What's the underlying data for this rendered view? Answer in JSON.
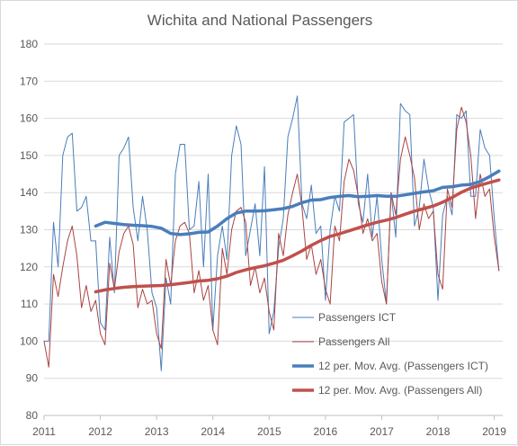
{
  "chart_data": {
    "type": "line",
    "title": "Wichita and National Passengers",
    "xlabel": "",
    "ylabel": "",
    "ylim": [
      80,
      180
    ],
    "yticks": [
      80,
      90,
      100,
      110,
      120,
      130,
      140,
      150,
      160,
      170,
      180
    ],
    "xlim": [
      2011,
      2019.15
    ],
    "xticks": [
      2011,
      2012,
      2013,
      2014,
      2015,
      2016,
      2017,
      2018,
      2019
    ],
    "grid": true,
    "legend_position": "bottom-right",
    "series": [
      {
        "name": "Passengers ICT",
        "color": "#4a7ebb",
        "width": 1,
        "x": [
          2011.0,
          2011.083,
          2011.167,
          2011.25,
          2011.333,
          2011.417,
          2011.5,
          2011.583,
          2011.667,
          2011.75,
          2011.833,
          2011.917,
          2012.0,
          2012.083,
          2012.167,
          2012.25,
          2012.333,
          2012.417,
          2012.5,
          2012.583,
          2012.667,
          2012.75,
          2012.833,
          2012.917,
          2013.0,
          2013.083,
          2013.167,
          2013.25,
          2013.333,
          2013.417,
          2013.5,
          2013.583,
          2013.667,
          2013.75,
          2013.833,
          2013.917,
          2014.0,
          2014.083,
          2014.167,
          2014.25,
          2014.333,
          2014.417,
          2014.5,
          2014.583,
          2014.667,
          2014.75,
          2014.833,
          2014.917,
          2015.0,
          2015.083,
          2015.167,
          2015.25,
          2015.333,
          2015.417,
          2015.5,
          2015.583,
          2015.667,
          2015.75,
          2015.833,
          2015.917,
          2016.0,
          2016.083,
          2016.167,
          2016.25,
          2016.333,
          2016.417,
          2016.5,
          2016.583,
          2016.667,
          2016.75,
          2016.833,
          2016.917,
          2017.0,
          2017.083,
          2017.167,
          2017.25,
          2017.333,
          2017.417,
          2017.5,
          2017.583,
          2017.667,
          2017.75,
          2017.833,
          2017.917,
          2018.0,
          2018.083,
          2018.167,
          2018.25,
          2018.333,
          2018.417,
          2018.5,
          2018.583,
          2018.667,
          2018.75,
          2018.833,
          2018.917,
          2019.0,
          2019.083
        ],
        "values": [
          100,
          100,
          132,
          120,
          150,
          155,
          156,
          135,
          136,
          139,
          127,
          127,
          105,
          103,
          128,
          113,
          150,
          152,
          155,
          136,
          127,
          139,
          130,
          113,
          109,
          92,
          117,
          110,
          145,
          153,
          153,
          130,
          131,
          143,
          120,
          145,
          103,
          123,
          131,
          122,
          150,
          158,
          153,
          123,
          130,
          137,
          123,
          147,
          102,
          108,
          125,
          133,
          155,
          160,
          166,
          137,
          133,
          142,
          129,
          131,
          111,
          130,
          139,
          135,
          159,
          160,
          161,
          137,
          132,
          145,
          128,
          139,
          122,
          110,
          140,
          128,
          164,
          162,
          161,
          131,
          136,
          149,
          141,
          136,
          111,
          134,
          139,
          134,
          161,
          160,
          162,
          139,
          139,
          157,
          152,
          150,
          133,
          119
        ]
      },
      {
        "name": "Passengers All",
        "color": "#a94442",
        "width": 1,
        "x": [
          2011.0,
          2011.083,
          2011.167,
          2011.25,
          2011.333,
          2011.417,
          2011.5,
          2011.583,
          2011.667,
          2011.75,
          2011.833,
          2011.917,
          2012.0,
          2012.083,
          2012.167,
          2012.25,
          2012.333,
          2012.417,
          2012.5,
          2012.583,
          2012.667,
          2012.75,
          2012.833,
          2012.917,
          2013.0,
          2013.083,
          2013.167,
          2013.25,
          2013.333,
          2013.417,
          2013.5,
          2013.583,
          2013.667,
          2013.75,
          2013.833,
          2013.917,
          2014.0,
          2014.083,
          2014.167,
          2014.25,
          2014.333,
          2014.417,
          2014.5,
          2014.583,
          2014.667,
          2014.75,
          2014.833,
          2014.917,
          2015.0,
          2015.083,
          2015.167,
          2015.25,
          2015.333,
          2015.417,
          2015.5,
          2015.583,
          2015.667,
          2015.75,
          2015.833,
          2015.917,
          2016.0,
          2016.083,
          2016.167,
          2016.25,
          2016.333,
          2016.417,
          2016.5,
          2016.583,
          2016.667,
          2016.75,
          2016.833,
          2016.917,
          2017.0,
          2017.083,
          2017.167,
          2017.25,
          2017.333,
          2017.417,
          2017.5,
          2017.583,
          2017.667,
          2017.75,
          2017.833,
          2017.917,
          2018.0,
          2018.083,
          2018.167,
          2018.25,
          2018.333,
          2018.417,
          2018.5,
          2018.583,
          2018.667,
          2018.75,
          2018.833,
          2018.917,
          2019.0,
          2019.083
        ],
        "values": [
          100,
          93,
          118,
          112,
          120,
          127,
          131,
          123,
          109,
          115,
          108,
          111,
          102,
          99,
          121,
          114,
          124,
          129,
          131,
          126,
          109,
          114,
          110,
          111,
          102,
          98,
          122,
          115,
          127,
          131,
          132,
          129,
          113,
          119,
          111,
          115,
          103,
          99,
          125,
          118,
          130,
          135,
          136,
          132,
          115,
          120,
          113,
          117,
          108,
          103,
          129,
          123,
          134,
          140,
          145,
          136,
          122,
          126,
          118,
          122,
          114,
          110,
          131,
          127,
          143,
          149,
          146,
          139,
          129,
          133,
          127,
          129,
          116,
          110,
          140,
          134,
          149,
          155,
          150,
          144,
          130,
          137,
          133,
          135,
          118,
          114,
          141,
          136,
          157,
          163,
          159,
          150,
          133,
          145,
          139,
          141,
          128,
          119
        ]
      },
      {
        "name": "12 per. Mov. Avg. (Passengers ICT)",
        "color": "#4a7ebb",
        "width": 3.5,
        "x": [
          2011.917,
          2012.083,
          2012.25,
          2012.417,
          2012.583,
          2012.75,
          2012.917,
          2013.083,
          2013.25,
          2013.417,
          2013.583,
          2013.75,
          2013.917,
          2014.083,
          2014.25,
          2014.417,
          2014.583,
          2014.75,
          2014.917,
          2015.083,
          2015.25,
          2015.417,
          2015.583,
          2015.75,
          2015.917,
          2016.083,
          2016.25,
          2016.417,
          2016.583,
          2016.75,
          2016.917,
          2017.083,
          2017.25,
          2017.417,
          2017.583,
          2017.75,
          2017.917,
          2018.083,
          2018.25,
          2018.417,
          2018.583,
          2018.75,
          2018.917,
          2019.083
        ],
        "values": [
          131,
          132,
          131.7,
          131.4,
          131.2,
          131.1,
          130.9,
          130.4,
          129,
          128.7,
          128.9,
          129.3,
          129.4,
          131,
          133,
          134.5,
          135,
          135,
          135.1,
          135.4,
          135.7,
          136.3,
          137.3,
          138,
          138.1,
          138.7,
          139,
          139.2,
          138.9,
          139,
          139.2,
          139,
          139,
          139.4,
          139.8,
          140.2,
          140.5,
          141.4,
          141.6,
          142,
          142.2,
          143,
          144.3,
          145.8
        ]
      },
      {
        "name": "12 per. Mov. Avg. (Passengers All)",
        "color": "#c0504d",
        "width": 3.5,
        "x": [
          2011.917,
          2012.083,
          2012.25,
          2012.417,
          2012.583,
          2012.75,
          2012.917,
          2013.083,
          2013.25,
          2013.417,
          2013.583,
          2013.75,
          2013.917,
          2014.083,
          2014.25,
          2014.417,
          2014.583,
          2014.75,
          2014.917,
          2015.083,
          2015.25,
          2015.417,
          2015.583,
          2015.75,
          2015.917,
          2016.083,
          2016.25,
          2016.417,
          2016.583,
          2016.75,
          2016.917,
          2017.083,
          2017.25,
          2017.417,
          2017.583,
          2017.75,
          2017.917,
          2018.083,
          2018.25,
          2018.417,
          2018.583,
          2018.75,
          2018.917,
          2019.083
        ],
        "values": [
          113.3,
          113.8,
          114.2,
          114.5,
          114.7,
          114.8,
          114.9,
          115,
          115.2,
          115.5,
          115.8,
          116.2,
          116.4,
          116.8,
          117.5,
          118.5,
          119.2,
          119.8,
          120.3,
          121,
          121.8,
          123,
          124.3,
          125.8,
          127.1,
          128.2,
          128.9,
          129.7,
          130.5,
          131.3,
          132,
          132.6,
          133.3,
          134.2,
          135,
          135.7,
          136.4,
          137.4,
          138.7,
          140.1,
          141.2,
          142,
          142.7,
          143.4
        ]
      }
    ]
  }
}
